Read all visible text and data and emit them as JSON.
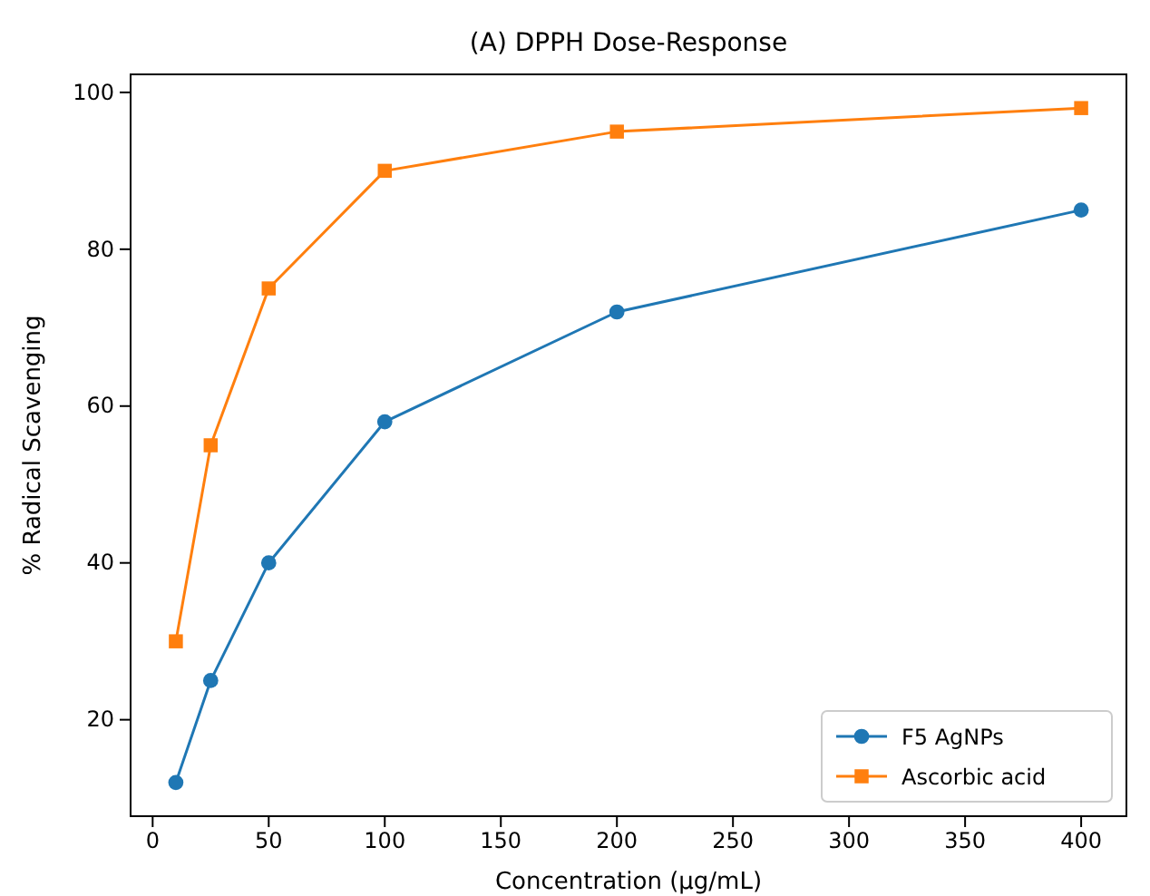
{
  "chart_data": {
    "type": "line",
    "title": "(A) DPPH Dose-Response",
    "xlabel": "Concentration (µg/mL)",
    "ylabel": "% Radical Scavenging",
    "x": [
      10,
      25,
      50,
      100,
      200,
      400
    ],
    "series": [
      {
        "name": "F5 AgNPs",
        "color": "#1f77b4",
        "marker": "circle",
        "values": [
          12,
          25,
          40,
          58,
          72,
          85
        ]
      },
      {
        "name": "Ascorbic acid",
        "color": "#ff7f0e",
        "marker": "square",
        "values": [
          30,
          55,
          75,
          90,
          95,
          98
        ]
      }
    ],
    "xlim": [
      -9.5,
      419.5
    ],
    "xticks": [
      0,
      50,
      100,
      150,
      200,
      250,
      300,
      350,
      400
    ],
    "ylim": [
      7.7,
      102.3
    ],
    "yticks": [
      20,
      40,
      60,
      80,
      100
    ],
    "legend": "bottom right",
    "grid": false
  }
}
